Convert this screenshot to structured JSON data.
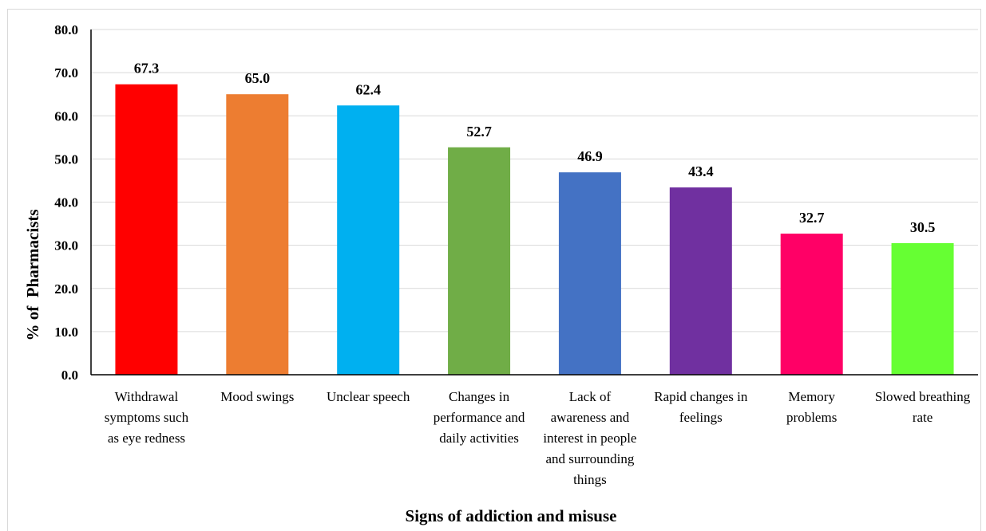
{
  "chart_data": {
    "type": "bar",
    "title": "",
    "xlabel": "Signs of addiction and misuse",
    "ylabel": "% of  Pharmacists",
    "ylim": [
      0,
      80
    ],
    "ytick_step": 10,
    "yticks": [
      "0.0",
      "10.0",
      "20.0",
      "30.0",
      "40.0",
      "50.0",
      "60.0",
      "70.0",
      "80.0"
    ],
    "grid": true,
    "legend": "none",
    "categories": [
      [
        "Withdrawal",
        "symptoms such",
        "as eye redness"
      ],
      [
        "Mood swings"
      ],
      [
        "Unclear speech"
      ],
      [
        "Changes in",
        "performance and",
        "daily activities"
      ],
      [
        "Lack of",
        "awareness and",
        "interest in people",
        "and surrounding",
        "things"
      ],
      [
        "Rapid changes in",
        "feelings"
      ],
      [
        "Memory",
        "problems"
      ],
      [
        "Slowed breathing",
        "rate"
      ]
    ],
    "values": [
      67.3,
      65.0,
      62.4,
      52.7,
      46.9,
      43.4,
      32.7,
      30.5
    ],
    "value_labels": [
      "67.3",
      "65.0",
      "62.4",
      "52.7",
      "46.9",
      "43.4",
      "32.7",
      "30.5"
    ],
    "colors": [
      "#ff0000",
      "#ed7d31",
      "#00b0f0",
      "#70ad47",
      "#4472c4",
      "#7030a0",
      "#ff0066",
      "#66ff33"
    ],
    "gridline_color": "#d9d9d9",
    "axis_color": "#000000"
  }
}
